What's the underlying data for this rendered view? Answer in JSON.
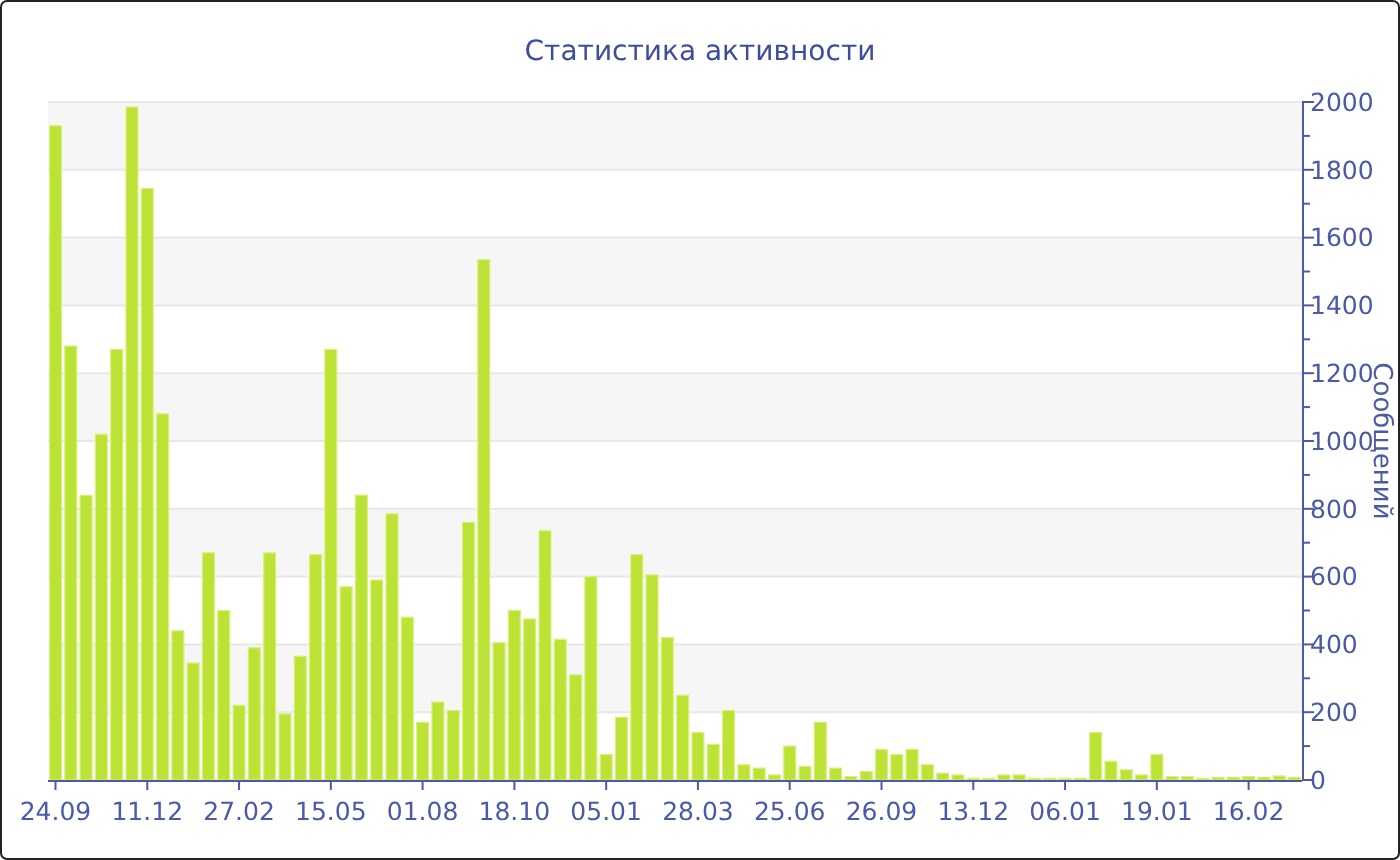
{
  "chart_data": {
    "type": "bar",
    "title": "Статистика активности",
    "ylabel": "Сообщений",
    "categories": [
      "24.09",
      null,
      null,
      null,
      null,
      null,
      "11.12",
      null,
      null,
      null,
      null,
      null,
      "27.02",
      null,
      null,
      null,
      null,
      null,
      "15.05",
      null,
      null,
      null,
      null,
      null,
      "01.08",
      null,
      null,
      null,
      null,
      null,
      "18.10",
      null,
      null,
      null,
      null,
      null,
      "05.01",
      null,
      null,
      null,
      null,
      null,
      "28.03",
      null,
      null,
      null,
      null,
      null,
      "25.06",
      null,
      null,
      null,
      null,
      null,
      "26.09",
      null,
      null,
      null,
      null,
      null,
      "13.12",
      null,
      null,
      null,
      null,
      null,
      "06.01",
      null,
      null,
      null,
      null,
      null,
      "19.01",
      null,
      null,
      null,
      null,
      null,
      "16.02",
      null,
      null,
      null
    ],
    "values": [
      1930,
      1280,
      840,
      1020,
      1270,
      1985,
      1745,
      1080,
      440,
      345,
      670,
      500,
      220,
      390,
      670,
      195,
      365,
      665,
      1270,
      570,
      840,
      590,
      785,
      480,
      170,
      230,
      205,
      760,
      1535,
      405,
      500,
      475,
      735,
      415,
      310,
      600,
      75,
      185,
      665,
      605,
      420,
      250,
      140,
      105,
      205,
      45,
      35,
      15,
      100,
      40,
      170,
      35,
      10,
      25,
      90,
      75,
      90,
      45,
      20,
      15,
      5,
      5,
      15,
      15,
      5,
      5,
      5,
      5,
      140,
      55,
      30,
      15,
      75,
      10,
      10,
      5,
      8,
      8,
      10,
      8,
      12,
      8
    ],
    "color": "#bce236",
    "ylim": [
      0,
      2000
    ],
    "yticks": [
      0,
      {
        "value": 100,
        "label": null
      },
      200,
      {
        "value": 300,
        "label": null
      },
      400,
      {
        "value": 500,
        "label": null
      },
      600,
      {
        "value": 700,
        "label": null
      },
      800,
      {
        "value": 900,
        "label": null
      },
      1000,
      {
        "value": 1100,
        "label": null
      },
      1200,
      {
        "value": 1300,
        "label": null
      },
      1400,
      {
        "value": 1500,
        "label": null
      },
      1600,
      {
        "value": 1700,
        "label": null
      },
      1800,
      {
        "value": 1900,
        "label": null
      },
      2000
    ],
    "grid": "y"
  }
}
